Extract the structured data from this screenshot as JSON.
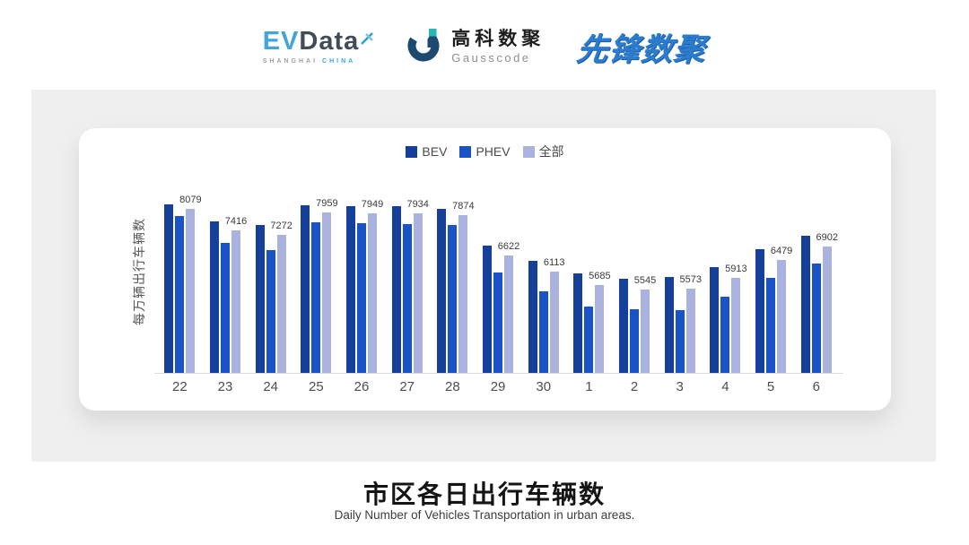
{
  "header": {
    "logos": {
      "evdata": {
        "part1": "EV",
        "part2": "Data",
        "caption_part1": "SHANGHAI",
        "caption_part2": "CHINA"
      },
      "gausscode": {
        "title": "高科数聚",
        "subtitle": "Gausscode"
      },
      "pioneer": {
        "title": "先锋数聚"
      }
    }
  },
  "chart_data": {
    "type": "bar",
    "title": "市区各日出行车辆数",
    "subtitle": "Daily Number of Vehicles Transportation in urban areas.",
    "ylabel": "每万辆出行车辆数",
    "xlabel": "",
    "categories": [
      "22",
      "23",
      "24",
      "25",
      "26",
      "27",
      "28",
      "29",
      "30",
      "1",
      "2",
      "3",
      "4",
      "5",
      "6"
    ],
    "series": [
      {
        "name": "BEV",
        "color": "#14409B",
        "values": [
          8235,
          7690,
          7575,
          8190,
          8170,
          8170,
          8080,
          6935,
          6430,
          6035,
          5880,
          5945,
          6250,
          6800,
          7225
        ]
      },
      {
        "name": "PHEV",
        "color": "#1A52C7",
        "values": [
          7870,
          7000,
          6770,
          7650,
          7640,
          7595,
          7575,
          6080,
          5485,
          5010,
          4900,
          4880,
          5300,
          5905,
          6355
        ]
      },
      {
        "name": "全部",
        "color": "#A9B3DD",
        "values": [
          8079,
          7416,
          7272,
          7959,
          7949,
          7934,
          7874,
          6622,
          6113,
          5685,
          5545,
          5573,
          5913,
          6479,
          6902
        ]
      }
    ],
    "label_series_index": 2,
    "ylim": [
      2900,
      9300
    ],
    "grid": false,
    "legend_position": "top",
    "axis_line_color": "#DCDCDC"
  }
}
